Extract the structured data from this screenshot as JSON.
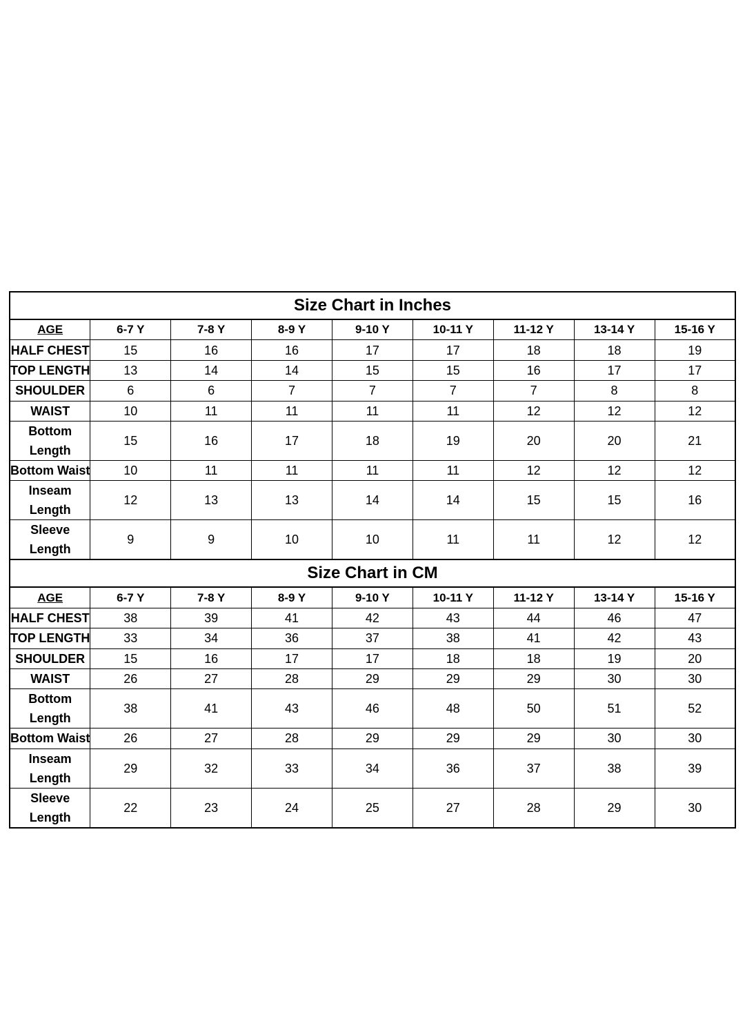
{
  "tables": [
    {
      "title": "Size Chart in Inches",
      "age_label": "AGE",
      "sizes": [
        "6-7 Y",
        "7-8 Y",
        "8-9 Y",
        "9-10 Y",
        "10-11 Y",
        "11-12 Y",
        "13-14 Y",
        "15-16 Y"
      ],
      "rows": [
        {
          "label": "HALF CHEST",
          "values": [
            "15",
            "16",
            "16",
            "17",
            "17",
            "18",
            "18",
            "19"
          ]
        },
        {
          "label": "TOP LENGTH",
          "values": [
            "13",
            "14",
            "14",
            "15",
            "15",
            "16",
            "17",
            "17"
          ]
        },
        {
          "label": "SHOULDER",
          "values": [
            "6",
            "6",
            "7",
            "7",
            "7",
            "7",
            "8",
            "8"
          ]
        },
        {
          "label": "WAIST",
          "values": [
            "10",
            "11",
            "11",
            "11",
            "11",
            "12",
            "12",
            "12"
          ]
        },
        {
          "label": "Bottom Length",
          "values": [
            "15",
            "16",
            "17",
            "18",
            "19",
            "20",
            "20",
            "21"
          ]
        },
        {
          "label": "Bottom Waist",
          "values": [
            "10",
            "11",
            "11",
            "11",
            "11",
            "12",
            "12",
            "12"
          ]
        },
        {
          "label": "Inseam Length",
          "values": [
            "12",
            "13",
            "13",
            "14",
            "14",
            "15",
            "15",
            "16"
          ]
        },
        {
          "label": "Sleeve Length",
          "values": [
            "9",
            "9",
            "10",
            "10",
            "11",
            "11",
            "12",
            "12"
          ]
        }
      ]
    },
    {
      "title": "Size Chart in CM",
      "age_label": "AGE",
      "sizes": [
        "6-7 Y",
        "7-8 Y",
        "8-9 Y",
        "9-10 Y",
        "10-11 Y",
        "11-12 Y",
        "13-14 Y",
        "15-16 Y"
      ],
      "rows": [
        {
          "label": "HALF CHEST",
          "values": [
            "38",
            "39",
            "41",
            "42",
            "43",
            "44",
            "46",
            "47"
          ]
        },
        {
          "label": "TOP LENGTH",
          "values": [
            "33",
            "34",
            "36",
            "37",
            "38",
            "41",
            "42",
            "43"
          ]
        },
        {
          "label": "SHOULDER",
          "values": [
            "15",
            "16",
            "17",
            "17",
            "18",
            "18",
            "19",
            "20"
          ]
        },
        {
          "label": "WAIST",
          "values": [
            "26",
            "27",
            "28",
            "29",
            "29",
            "29",
            "30",
            "30"
          ]
        },
        {
          "label": "Bottom Length",
          "values": [
            "38",
            "41",
            "43",
            "46",
            "48",
            "50",
            "51",
            "52"
          ]
        },
        {
          "label": "Bottom Waist",
          "values": [
            "26",
            "27",
            "28",
            "29",
            "29",
            "29",
            "30",
            "30"
          ]
        },
        {
          "label": "Inseam Length",
          "values": [
            "29",
            "32",
            "33",
            "34",
            "36",
            "37",
            "38",
            "39"
          ]
        },
        {
          "label": "Sleeve Length",
          "values": [
            "22",
            "23",
            "24",
            "25",
            "27",
            "28",
            "29",
            "30"
          ]
        }
      ]
    }
  ]
}
